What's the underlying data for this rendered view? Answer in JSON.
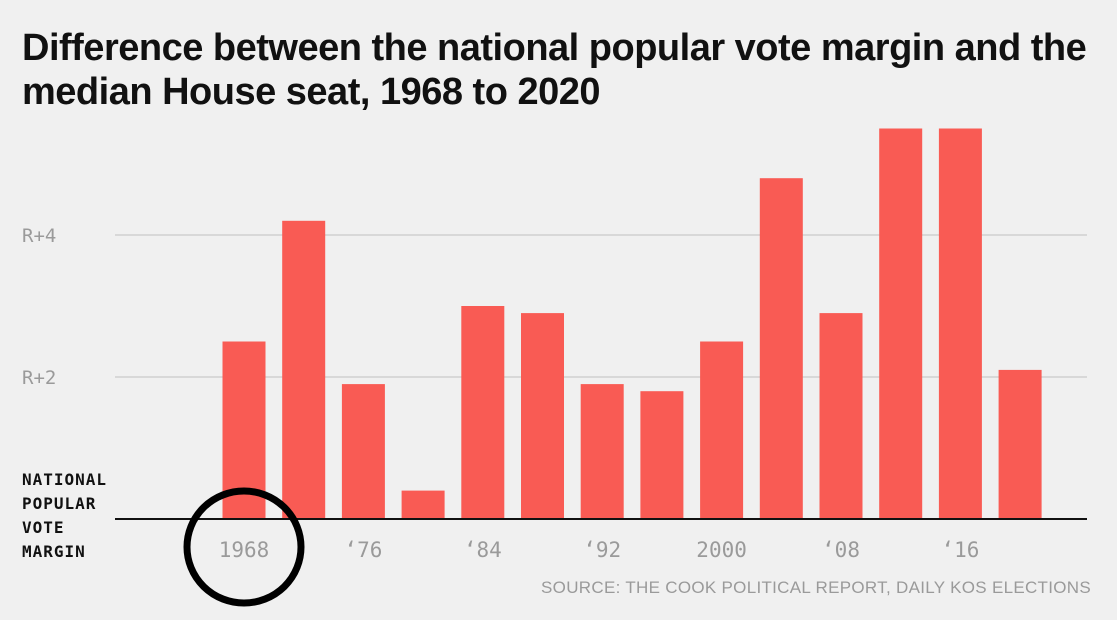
{
  "title": "Difference between the national popular vote margin and the median House seat, 1968 to 2020",
  "baseline_label": [
    "NATIONAL",
    "POPULAR",
    "VOTE",
    "MARGIN"
  ],
  "source": "SOURCE: THE COOK POLITICAL REPORT, DAILY KOS ELECTIONS",
  "colors": {
    "bar": "#f95b54",
    "grid": "#cfcfcf",
    "axis": "#111111",
    "tick_text": "#9a9a9a",
    "highlight_circle": "#000000"
  },
  "chart_data": {
    "type": "bar",
    "title": "Difference between the national popular vote margin and the median House seat, 1968 to 2020",
    "xlabel": "",
    "ylabel": "",
    "ylim": [
      0,
      5.5
    ],
    "grid": true,
    "categories": [
      "1968",
      "1972",
      "1976",
      "1980",
      "1984",
      "1988",
      "1992",
      "1996",
      "2000",
      "2004",
      "2008",
      "2012",
      "2016",
      "2020"
    ],
    "series": [
      {
        "values": [
          2.5,
          4.2,
          1.9,
          0.4,
          3.0,
          2.9,
          1.9,
          1.8,
          2.5,
          4.8,
          2.9,
          5.5,
          5.5,
          2.1
        ]
      }
    ],
    "y_ticks": [
      {
        "value": 2,
        "label": "R+2"
      },
      {
        "value": 4,
        "label": "R+4"
      }
    ],
    "x_tick_labels": [
      {
        "category": "1968",
        "label": "1968"
      },
      {
        "category": "1976",
        "label": "‘76"
      },
      {
        "category": "1984",
        "label": "‘84"
      },
      {
        "category": "1992",
        "label": "‘92"
      },
      {
        "category": "2000",
        "label": "2000"
      },
      {
        "category": "2008",
        "label": "‘08"
      },
      {
        "category": "2016",
        "label": "‘16"
      }
    ],
    "annotations": [
      {
        "type": "circle",
        "target": "1968"
      }
    ]
  }
}
